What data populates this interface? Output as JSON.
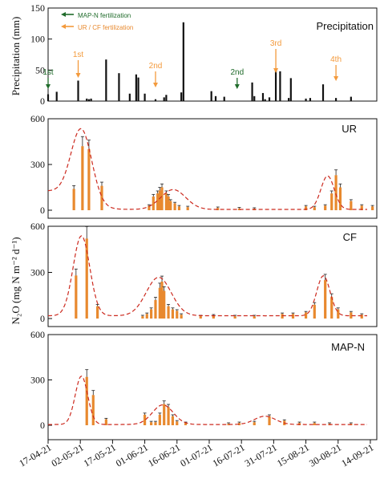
{
  "x_dates": [
    "17-04-21",
    "02-05-21",
    "17-05-21",
    "01-06-21",
    "16-06-21",
    "01-07-21",
    "16-07-21",
    "31-07-21",
    "15-08-21",
    "30-08-21",
    "14-09-21"
  ],
  "colors": {
    "green": "#1f6b2a",
    "orange": "#f39a3c",
    "bar_black": "#111111",
    "bar_orange": "#e8892e",
    "fit_red": "#cc2a1f"
  },
  "legend": {
    "mapn": "MAP-N fertilization",
    "urcf": "UR / CF fertilization"
  },
  "chart_data": [
    {
      "type": "bar",
      "title": "Precipitation",
      "ylabel": "Precipitation (mm)",
      "ylim": [
        0,
        150
      ],
      "yticks": [
        "0",
        "50",
        "100",
        "150"
      ],
      "x": [
        "2021-04-17",
        "2021-04-21",
        "2021-05-01",
        "2021-05-05",
        "2021-05-06",
        "2021-05-07",
        "2021-05-14",
        "2021-05-20",
        "2021-05-25",
        "2021-05-28",
        "2021-05-29",
        "2021-06-01",
        "2021-06-06",
        "2021-06-10",
        "2021-06-11",
        "2021-06-18",
        "2021-06-19",
        "2021-07-02",
        "2021-07-04",
        "2021-07-08",
        "2021-07-21",
        "2021-07-22",
        "2021-07-26",
        "2021-07-27",
        "2021-07-29",
        "2021-08-01",
        "2021-08-03",
        "2021-08-07",
        "2021-08-08",
        "2021-08-15",
        "2021-08-17",
        "2021-08-23",
        "2021-08-29",
        "2021-09-05"
      ],
      "values": [
        11,
        15,
        33,
        4,
        3,
        4,
        67,
        45,
        12,
        43,
        38,
        12,
        3,
        6,
        10,
        14,
        127,
        16,
        8,
        7,
        30,
        8,
        13,
        3,
        6,
        51,
        48,
        5,
        37,
        4,
        5,
        27,
        5,
        7
      ],
      "annotations": [
        {
          "label": "1st",
          "date": "2021-04-17",
          "color": "green"
        },
        {
          "label": "1st",
          "date": "2021-05-01",
          "color": "orange"
        },
        {
          "label": "2nd",
          "date": "2021-06-06",
          "color": "orange"
        },
        {
          "label": "2nd",
          "date": "2021-07-14",
          "color": "green"
        },
        {
          "label": "3rd",
          "date": "2021-08-01",
          "color": "orange"
        },
        {
          "label": "4th",
          "date": "2021-08-29",
          "color": "orange"
        }
      ]
    },
    {
      "type": "bar",
      "title": "UR",
      "ylim": [
        0,
        600
      ],
      "yticks": [
        "0",
        "300",
        "600"
      ],
      "x": [
        "2021-04-29",
        "2021-05-03",
        "2021-05-06",
        "2021-05-12",
        "2021-06-03",
        "2021-06-05",
        "2021-06-07",
        "2021-06-08",
        "2021-06-09",
        "2021-06-11",
        "2021-06-12",
        "2021-06-13",
        "2021-06-15",
        "2021-06-17",
        "2021-06-21",
        "2021-07-05",
        "2021-07-15",
        "2021-07-22",
        "2021-08-15",
        "2021-08-19",
        "2021-08-24",
        "2021-08-27",
        "2021-08-29",
        "2021-08-31",
        "2021-09-05",
        "2021-09-10",
        "2021-09-15"
      ],
      "values": [
        140,
        420,
        400,
        160,
        30,
        90,
        110,
        130,
        150,
        110,
        90,
        60,
        45,
        25,
        20,
        15,
        12,
        10,
        25,
        20,
        30,
        110,
        230,
        150,
        60,
        30,
        25
      ]
    },
    {
      "type": "bar",
      "title": "CF",
      "ylim": [
        0,
        600
      ],
      "yticks": [
        "0",
        "300",
        "600"
      ],
      "x": [
        "2021-04-30",
        "2021-05-05",
        "2021-05-10",
        "2021-05-31",
        "2021-06-02",
        "2021-06-04",
        "2021-06-06",
        "2021-06-08",
        "2021-06-09",
        "2021-06-10",
        "2021-06-12",
        "2021-06-14",
        "2021-06-16",
        "2021-06-18",
        "2021-06-27",
        "2021-07-03",
        "2021-07-13",
        "2021-07-22",
        "2021-08-04",
        "2021-08-09",
        "2021-08-15",
        "2021-08-19",
        "2021-08-24",
        "2021-08-27",
        "2021-08-30",
        "2021-09-05",
        "2021-09-10"
      ],
      "values": [
        280,
        520,
        80,
        15,
        30,
        60,
        120,
        200,
        240,
        180,
        80,
        60,
        50,
        25,
        15,
        20,
        15,
        15,
        30,
        30,
        40,
        90,
        250,
        140,
        60,
        40,
        25
      ]
    },
    {
      "type": "bar",
      "title": "MAP-N",
      "ylim": [
        0,
        600
      ],
      "yticks": [
        "0",
        "300",
        "600"
      ],
      "x": [
        "2021-05-05",
        "2021-05-08",
        "2021-05-14",
        "2021-06-01",
        "2021-06-04",
        "2021-06-06",
        "2021-06-08",
        "2021-06-10",
        "2021-06-12",
        "2021-06-14",
        "2021-06-16",
        "2021-06-20",
        "2021-07-10",
        "2021-07-15",
        "2021-07-22",
        "2021-07-29",
        "2021-08-05",
        "2021-08-12",
        "2021-08-19",
        "2021-08-26",
        "2021-09-05"
      ],
      "values": [
        320,
        200,
        40,
        70,
        20,
        20,
        70,
        140,
        120,
        60,
        25,
        15,
        10,
        15,
        20,
        60,
        30,
        15,
        15,
        10,
        10
      ]
    }
  ],
  "shared_ylabel": "N₂O (mg N m⁻² d⁻¹)"
}
